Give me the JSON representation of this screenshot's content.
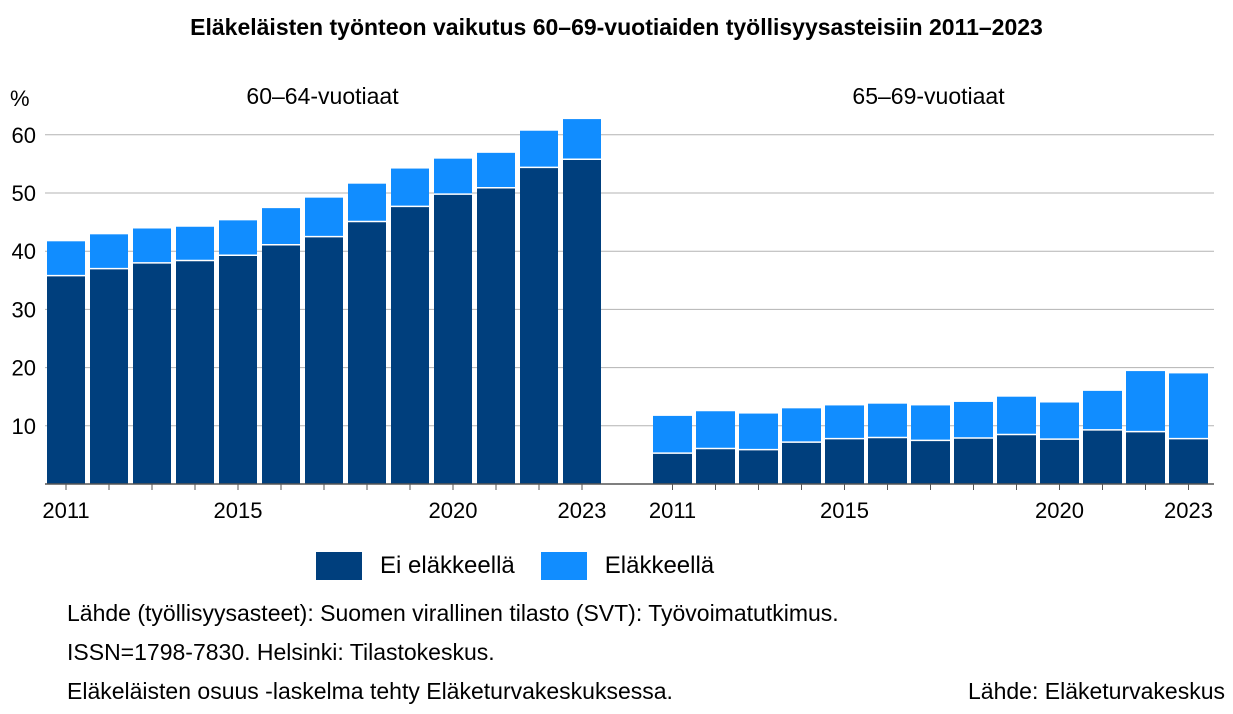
{
  "chart_data": {
    "type": "bar",
    "stacked": true,
    "title": "Eläkeläisten työnteon vaikutus 60–69-vuotiaiden työllisyysasteisiin 2011–2023",
    "ylabel": "%",
    "ylim": [
      0,
      65
    ],
    "yticks": [
      10,
      20,
      30,
      40,
      50,
      60
    ],
    "grid": true,
    "legend_position": "bottom",
    "series_names": [
      "Ei eläkkeellä",
      "Eläkkeellä"
    ],
    "colors": {
      "ei_elakkeella": "#003f7d",
      "elakkeella": "#118dff",
      "grid": "#b3b3b3"
    },
    "panels": [
      {
        "label": "60–64-vuotiaat",
        "categories": [
          2011,
          2012,
          2013,
          2014,
          2015,
          2016,
          2017,
          2018,
          2019,
          2020,
          2021,
          2022,
          2023
        ],
        "tick_labels": [
          "2011",
          "",
          "",
          "",
          "2015",
          "",
          "",
          "",
          "",
          "2020",
          "",
          "",
          "2023"
        ],
        "series": [
          {
            "name": "Ei eläkkeellä",
            "values": [
              35.8,
              37.0,
              38.0,
              38.4,
              39.3,
              41.1,
              42.5,
              45.1,
              47.7,
              49.8,
              50.9,
              54.4,
              55.8
            ]
          },
          {
            "name": "Eläkkeellä",
            "values": [
              5.9,
              5.9,
              5.9,
              5.8,
              6.0,
              6.3,
              6.7,
              6.5,
              6.5,
              6.1,
              6.0,
              6.3,
              6.9
            ]
          }
        ]
      },
      {
        "label": "65–69-vuotiaat",
        "categories": [
          2011,
          2012,
          2013,
          2014,
          2015,
          2016,
          2017,
          2018,
          2019,
          2020,
          2021,
          2022,
          2023
        ],
        "tick_labels": [
          "2011",
          "",
          "",
          "",
          "2015",
          "",
          "",
          "",
          "",
          "2020",
          "",
          "",
          "2023"
        ],
        "series": [
          {
            "name": "Ei eläkkeellä",
            "values": [
              5.3,
              6.1,
              5.9,
              7.2,
              7.8,
              8.0,
              7.5,
              7.9,
              8.5,
              7.7,
              9.3,
              9.0,
              7.8
            ]
          },
          {
            "name": "Eläkkeellä",
            "values": [
              6.4,
              6.4,
              6.2,
              5.8,
              5.7,
              5.8,
              6.0,
              6.2,
              6.5,
              6.3,
              6.7,
              10.4,
              11.2
            ]
          }
        ]
      }
    ]
  },
  "legend": {
    "ei_elakkeella": "Ei eläkkeellä",
    "elakkeella": "Eläkkeellä"
  },
  "sources": {
    "line1": "Lähde (työllisyysasteet): Suomen virallinen tilasto (SVT): Työvoimatutkimus.",
    "line2": "ISSN=1798-7830. Helsinki: Tilastokeskus.",
    "line3": "Eläkeläisten osuus -laskelma tehty Eläketurvakeskuksessa.",
    "right": "Lähde: Eläketurvakeskus"
  }
}
